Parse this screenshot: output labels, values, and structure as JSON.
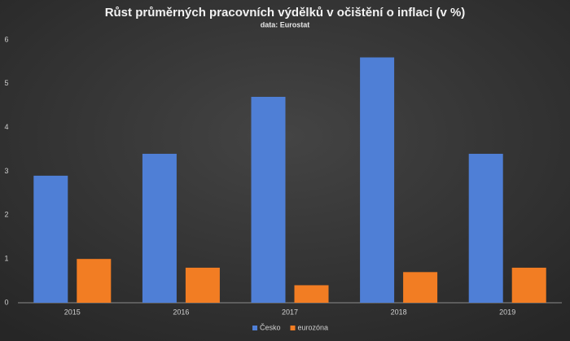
{
  "chart_data": {
    "type": "bar",
    "title": "Růst průměrných pracovních výdělků v očištění o inflaci (v %)",
    "subtitle": "data: Eurostat",
    "categories": [
      "2015",
      "2016",
      "2017",
      "2018",
      "2019"
    ],
    "series": [
      {
        "name": "Česko",
        "color": "#4f7fd6",
        "values": [
          2.9,
          3.4,
          4.7,
          5.6,
          3.4
        ]
      },
      {
        "name": "eurozóna",
        "color": "#f27d23",
        "values": [
          1.0,
          0.8,
          0.4,
          0.7,
          0.8
        ]
      }
    ],
    "ylim": [
      0,
      6
    ],
    "yticks": [
      0,
      1,
      2,
      3,
      4,
      5,
      6
    ],
    "grid": false,
    "legend": "bottom"
  }
}
